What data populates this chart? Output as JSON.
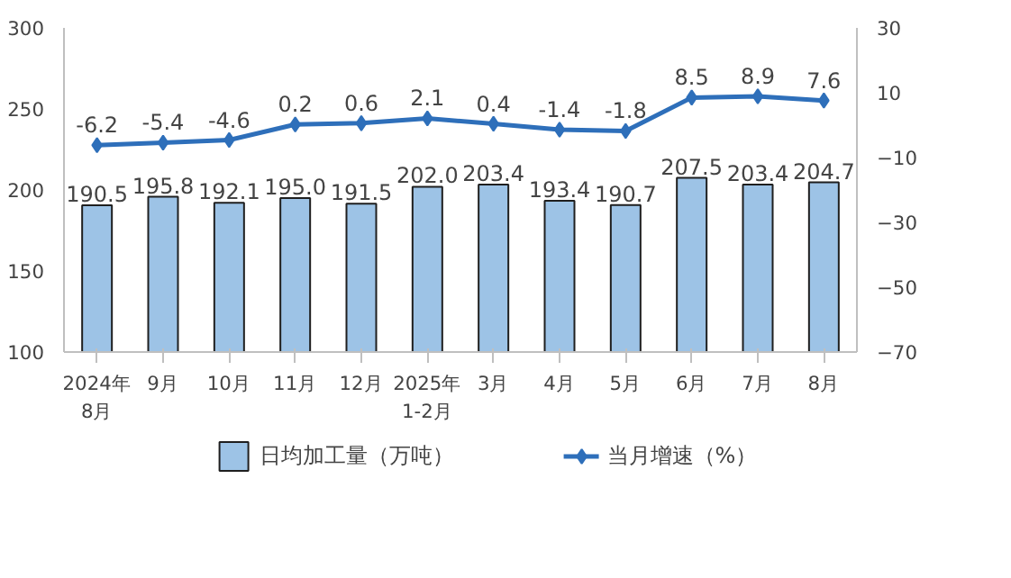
{
  "chart_data": {
    "type": "bar",
    "categories": [
      "2024年\n8月",
      "9月",
      "10月",
      "11月",
      "12月",
      "2025年\n1-2月",
      "3月",
      "4月",
      "5月",
      "6月",
      "7月",
      "8月"
    ],
    "series": [
      {
        "name": "日均加工量（万吨）",
        "color": "#9dc3e6",
        "values": [
          190.5,
          195.8,
          192.1,
          195.0,
          191.5,
          202.0,
          203.4,
          193.4,
          190.7,
          207.5,
          203.4,
          204.7
        ],
        "value_labels": [
          "190.5",
          "195.8",
          "192.1",
          "195.0",
          "191.5",
          "202.0",
          "203.4",
          "193.4",
          "190.7",
          "207.5",
          "203.4",
          "204.7"
        ]
      },
      {
        "name": "当月增速（%）",
        "type": "line",
        "axis": "y2",
        "color": "#2e6fba",
        "marker": "diamond",
        "values": [
          -6.2,
          -5.4,
          -4.6,
          0.2,
          0.6,
          2.1,
          0.4,
          -1.4,
          -1.8,
          8.5,
          8.9,
          7.6
        ],
        "value_labels": [
          "-6.2",
          "-5.4",
          "-4.6",
          "0.2",
          "0.6",
          "2.1",
          "0.4",
          "-1.4",
          "-1.8",
          "8.5",
          "8.9",
          "7.6"
        ]
      }
    ],
    "ylim": [
      100,
      300
    ],
    "yticks": [
      100,
      150,
      200,
      250,
      300
    ],
    "y2lim": [
      -70,
      30
    ],
    "y2ticks": [
      -70,
      -50,
      -30,
      -10,
      10,
      30
    ],
    "legend": "bottom"
  }
}
